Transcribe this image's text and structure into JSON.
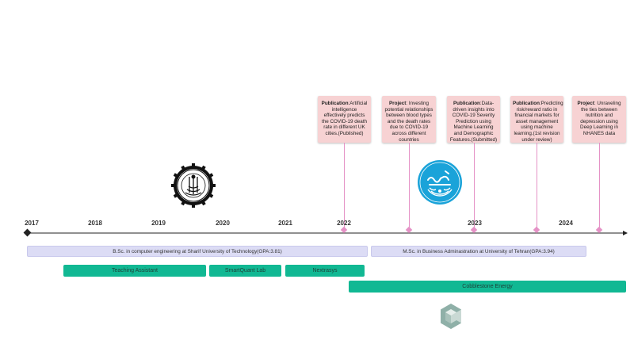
{
  "years": [
    "2017",
    "2018",
    "2019",
    "2020",
    "2021",
    "2022",
    "2023",
    "2024"
  ],
  "cards": [
    {
      "bold": "Publication",
      "text": ":Artificial intelligence effectively predicts the COVID-19 death rate in different UK cities.(Published)"
    },
    {
      "bold": "Project",
      "text": ": Investing potential relationships between blood types and the death rates due to COVID-19 across different countries"
    },
    {
      "bold": "Publication",
      "text": ":Data-driven insights into COVID-19 Severity Prediction using Machine Learning and Demographic Features.(Submitted)"
    },
    {
      "bold": "Publication",
      "text": ":Predicting risk/reward ratio in financial markets for asset management using machine learning.(1st revision under review)"
    },
    {
      "bold": "Project",
      "text": ": Unraveling the ties between nutrition and depression using Deep Learning in NHANES data"
    }
  ],
  "education": [
    {
      "label": "B.Sc. in computer engineering at Sharif University of Technology(GPA:3.81)"
    },
    {
      "label": "M.Sc. in Business Adminastration at University of Tehran(GPA:3.94)"
    }
  ],
  "work": [
    {
      "label": "Teaching Assistant"
    },
    {
      "label": "SmartQuant Lab"
    },
    {
      "label": "Nextrasys"
    },
    {
      "label": "Cobblestone Energy"
    }
  ],
  "logos": {
    "sharif": "sharif-university-seal",
    "tehran": "university-of-tehran-logo",
    "cobblestone": "cobblestone-energy-logo"
  },
  "colors": {
    "card_bg": "#f7d2d3",
    "connector": "#e592c6",
    "education_bar": "#dcdcf5",
    "work_bar": "#11b893",
    "axis": "#222222"
  }
}
